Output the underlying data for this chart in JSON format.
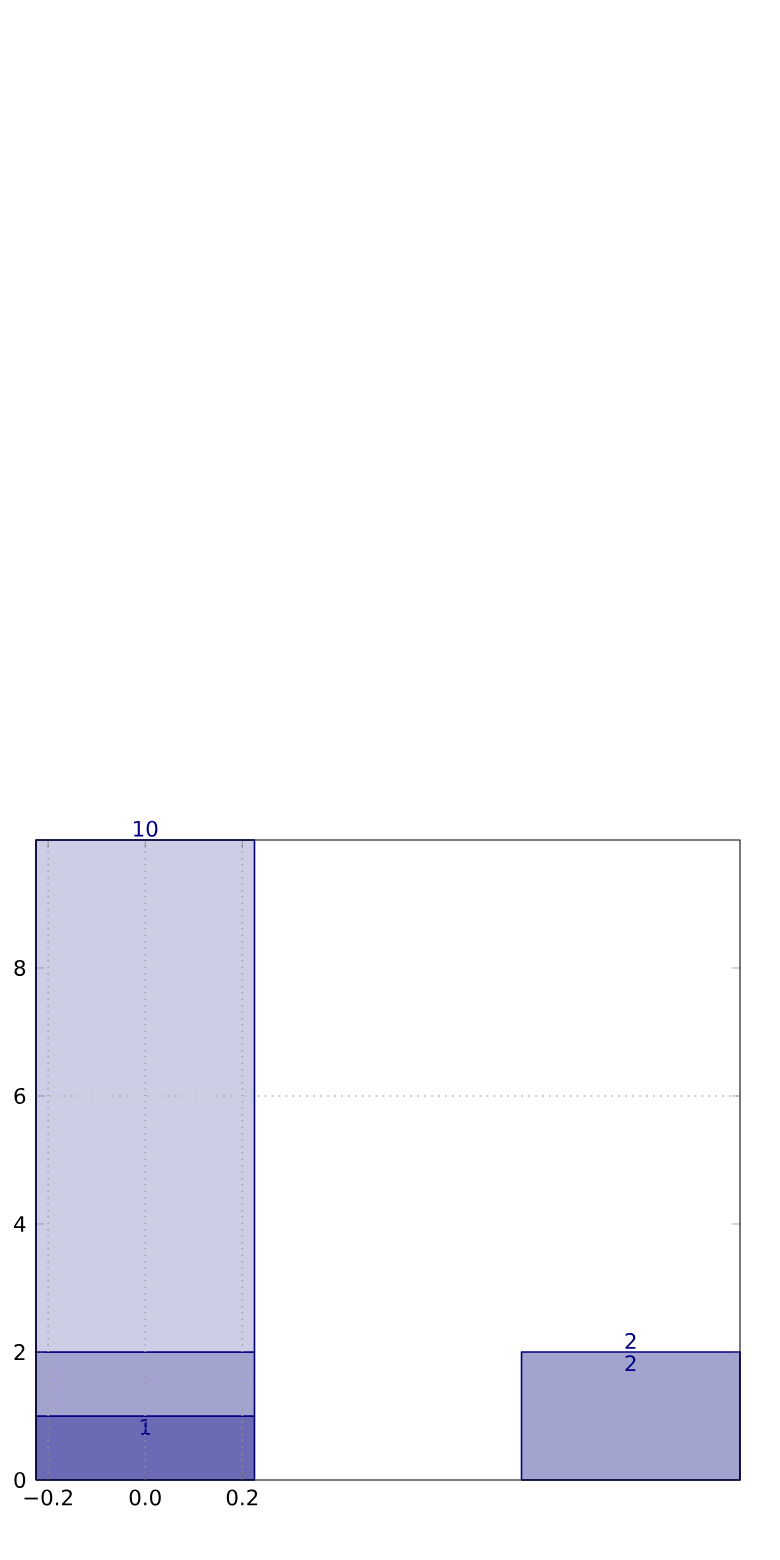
{
  "chart_data": {
    "type": "bar",
    "x": [
      0,
      1
    ],
    "stacked": true,
    "series": [
      {
        "color": "#6b6bb5",
        "values": [
          1,
          null
        ],
        "value_labels": [
          "1",
          null
        ]
      },
      {
        "color": "#a3a3d0",
        "values": [
          1,
          2
        ],
        "value_labels": [
          null,
          "2"
        ]
      },
      {
        "color": "#cdcde6",
        "values": [
          8,
          null
        ]
      }
    ],
    "totals": [
      "10",
      "2"
    ],
    "xlim": [
      -0.225,
      1.225
    ],
    "xticks": [
      {
        "value": -0.2,
        "label": "−0.2"
      },
      {
        "value": 0,
        "label": "0.0"
      },
      {
        "value": 0.2,
        "label": "0.2"
      }
    ],
    "ylim": [
      0,
      10
    ],
    "yticks": [
      0,
      2,
      4,
      6,
      8
    ],
    "grid": "x",
    "ref_lines": [
      {
        "axis": "y",
        "value": 6,
        "color": "#b0b0b0",
        "line_style": "dotted"
      }
    ]
  }
}
